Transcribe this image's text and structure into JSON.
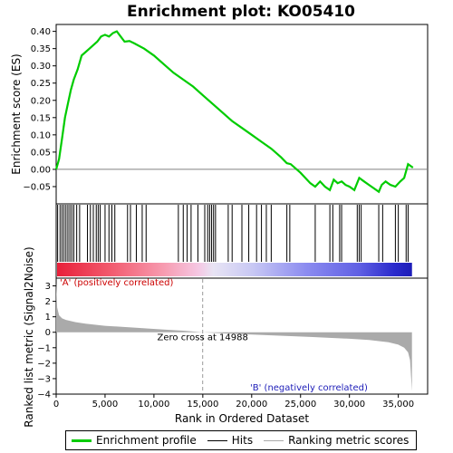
{
  "chart_data": {
    "type": "line",
    "title": "Enrichment plot: KO05410",
    "xlabel": "Rank in Ordered Dataset",
    "x_range": [
      0,
      38000
    ],
    "x_ticks": [
      0,
      5000,
      10000,
      15000,
      20000,
      25000,
      30000,
      35000
    ],
    "x_tick_labels": [
      "0",
      "5,000",
      "10,000",
      "15,000",
      "20,000",
      "25,000",
      "30,000",
      "35,000"
    ],
    "enrichment": {
      "ylabel": "Enrichment score (ES)",
      "ylim": [
        -0.1,
        0.42
      ],
      "y_ticks": [
        -0.05,
        0.0,
        0.05,
        0.1,
        0.15,
        0.2,
        0.25,
        0.3,
        0.35,
        0.4
      ],
      "y_tick_labels": [
        "−0.05",
        "0.00",
        "0.05",
        "0.10",
        "0.15",
        "0.20",
        "0.25",
        "0.30",
        "0.35",
        "0.40"
      ],
      "series_name": "Enrichment profile",
      "color": "#00cc00",
      "x": [
        0,
        300,
        600,
        900,
        1200,
        1500,
        1800,
        2200,
        2600,
        3000,
        3400,
        3800,
        4200,
        4600,
        5000,
        5400,
        5800,
        6200,
        6600,
        7000,
        7500,
        8000,
        9000,
        10000,
        11000,
        12000,
        13000,
        14000,
        15000,
        16000,
        17000,
        18000,
        19000,
        20000,
        21000,
        22000,
        23000,
        23600,
        24000,
        25000,
        26000,
        26500,
        27000,
        27500,
        28000,
        28400,
        28800,
        29200,
        29600,
        30000,
        30500,
        31000,
        31500,
        32000,
        32500,
        33000,
        33300,
        33700,
        34200,
        34700,
        35200,
        35600,
        36000,
        36500
      ],
      "y": [
        0.0,
        0.03,
        0.09,
        0.15,
        0.19,
        0.23,
        0.26,
        0.29,
        0.33,
        0.34,
        0.35,
        0.36,
        0.37,
        0.385,
        0.39,
        0.385,
        0.395,
        0.4,
        0.385,
        0.37,
        0.372,
        0.365,
        0.35,
        0.33,
        0.305,
        0.28,
        0.26,
        0.24,
        0.215,
        0.19,
        0.165,
        0.14,
        0.12,
        0.1,
        0.08,
        0.06,
        0.035,
        0.018,
        0.015,
        -0.01,
        -0.04,
        -0.05,
        -0.035,
        -0.05,
        -0.06,
        -0.03,
        -0.04,
        -0.035,
        -0.045,
        -0.05,
        -0.06,
        -0.025,
        -0.035,
        -0.045,
        -0.055,
        -0.065,
        -0.045,
        -0.035,
        -0.045,
        -0.05,
        -0.035,
        -0.025,
        0.015,
        0.005
      ]
    },
    "hits_positions": [
      150,
      400,
      600,
      800,
      1000,
      1200,
      1400,
      1600,
      1800,
      2100,
      2400,
      3200,
      3500,
      3800,
      4100,
      4300,
      4500,
      5000,
      5400,
      5700,
      6000,
      7300,
      7600,
      8200,
      8800,
      9200,
      12500,
      13000,
      13400,
      13800,
      14500,
      15200,
      15500,
      15700,
      15900,
      16100,
      16300,
      17600,
      18000,
      19000,
      19700,
      20500,
      21000,
      21500,
      22000,
      23600,
      23900,
      26500,
      28000,
      28300,
      29000,
      29200,
      30800,
      31000,
      31200,
      33000,
      33400,
      34700,
      35000,
      35800,
      36000
    ],
    "heatmap_stops": [
      {
        "pos": 0,
        "color": "#e8203a"
      },
      {
        "pos": 0.15,
        "color": "#f25a6e"
      },
      {
        "pos": 0.3,
        "color": "#f79bb0"
      },
      {
        "pos": 0.4,
        "color": "#f5c8e4"
      },
      {
        "pos": 0.44,
        "color": "#e8e4f4"
      },
      {
        "pos": 0.55,
        "color": "#c8c8f4"
      },
      {
        "pos": 0.7,
        "color": "#8c8cf0"
      },
      {
        "pos": 0.85,
        "color": "#6060e4"
      },
      {
        "pos": 0.95,
        "color": "#2a2acc"
      },
      {
        "pos": 1.0,
        "color": "#1c1cb8"
      }
    ],
    "ranked_metric": {
      "ylabel": "Ranked list metric (Signal2Noise)",
      "ylim": [
        -4,
        3.5
      ],
      "y_ticks": [
        -4,
        -3,
        -2,
        -1,
        0,
        1,
        2,
        3
      ],
      "y_tick_labels": [
        "−4",
        "−3",
        "−2",
        "−1",
        "0",
        "1",
        "2",
        "3"
      ],
      "series_name": "Ranking metric scores",
      "color": "#aaaaaa",
      "x": [
        0,
        100,
        300,
        600,
        1000,
        2000,
        3000,
        5000,
        8000,
        11000,
        13000,
        14988,
        18000,
        22000,
        26000,
        30000,
        32000,
        34000,
        35000,
        35600,
        36000,
        36200,
        36400
      ],
      "y": [
        3.2,
        1.6,
        1.1,
        0.9,
        0.8,
        0.65,
        0.55,
        0.42,
        0.3,
        0.18,
        0.1,
        0.0,
        -0.1,
        -0.2,
        -0.3,
        -0.42,
        -0.5,
        -0.65,
        -0.8,
        -1.0,
        -1.3,
        -1.8,
        -3.8
      ],
      "zero_cross_label": "Zero cross at 14988",
      "zero_cross_x": 14988
    },
    "annotations": {
      "positive": "'A' (positively correlated)",
      "negative": "'B' (negatively correlated)"
    },
    "legend": {
      "placement": "bottom",
      "items": [
        "Enrichment profile",
        "Hits",
        "Ranking metric scores"
      ]
    }
  }
}
